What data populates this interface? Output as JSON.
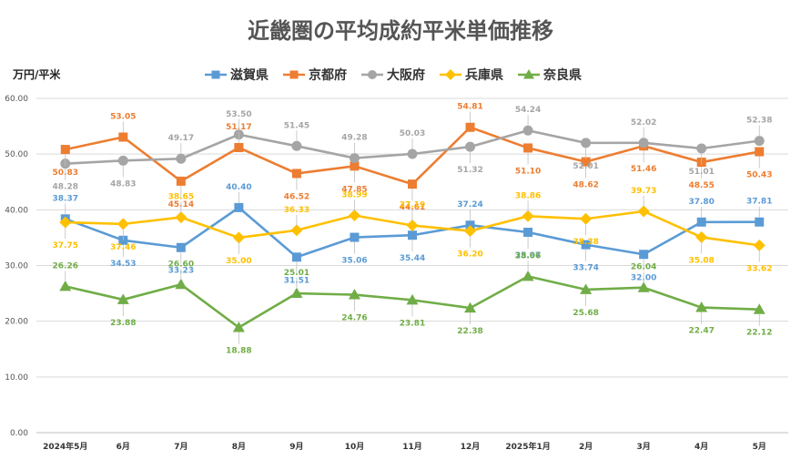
{
  "chart_data": {
    "type": "line",
    "title": "近畿圏の平均成約平米単価推移",
    "ylabel": "万円/平米",
    "xlabel": "",
    "ylim": [
      0,
      60
    ],
    "yticks": [
      "0.00",
      "10.00",
      "20.00",
      "30.00",
      "40.00",
      "50.00",
      "60.00"
    ],
    "grid": true,
    "legend_position": "top-center",
    "categories": [
      "2024年5月",
      "6月",
      "7月",
      "8月",
      "9月",
      "10月",
      "11月",
      "12月",
      "2025年1月",
      "2月",
      "3月",
      "4月",
      "5月"
    ],
    "series": [
      {
        "name": "滋賀県",
        "color": "#5b9bd5",
        "marker": "square",
        "values": [
          38.37,
          34.53,
          33.23,
          40.4,
          31.51,
          35.06,
          35.44,
          37.24,
          35.97,
          33.74,
          32.0,
          37.8,
          37.81
        ],
        "labels": [
          "38.37",
          "34.53",
          "33.23",
          "40.40",
          "31.51",
          "35.06",
          "35.44",
          "37.24",
          "35.97",
          "33.74",
          "32.00",
          "37.80",
          "37.81"
        ]
      },
      {
        "name": "京都府",
        "color": "#ed7d31",
        "marker": "square",
        "values": [
          50.83,
          53.05,
          45.14,
          51.17,
          46.52,
          47.85,
          44.61,
          54.81,
          51.1,
          48.62,
          51.46,
          48.55,
          50.43
        ],
        "labels": [
          "50.83",
          "53.05",
          "45.14",
          "51.17",
          "46.52",
          "47.85",
          "44.61",
          "54.81",
          "51.10",
          "48.62",
          "51.46",
          "48.55",
          "50.43"
        ]
      },
      {
        "name": "大阪府",
        "color": "#a5a5a5",
        "marker": "circle",
        "values": [
          48.28,
          48.83,
          49.17,
          53.5,
          51.45,
          49.28,
          50.03,
          51.32,
          54.24,
          52.01,
          52.02,
          51.01,
          52.38
        ],
        "labels": [
          "48.28",
          "48.83",
          "49.17",
          "53.50",
          "51.45",
          "49.28",
          "50.03",
          "51.32",
          "54.24",
          "52.01",
          "52.02",
          "51.01",
          "52.38"
        ]
      },
      {
        "name": "兵庫県",
        "color": "#ffc000",
        "marker": "diamond",
        "values": [
          37.75,
          37.46,
          38.65,
          35.0,
          36.33,
          38.99,
          37.19,
          36.2,
          38.86,
          38.38,
          39.73,
          35.08,
          33.62
        ],
        "labels": [
          "37.75",
          "37.46",
          "38.65",
          "35.00",
          "36.33",
          "38.99",
          "37.19",
          "36.20",
          "38.86",
          "38.38",
          "39.73",
          "35.08",
          "33.62"
        ]
      },
      {
        "name": "奈良県",
        "color": "#70ad47",
        "marker": "triangle",
        "values": [
          26.26,
          23.88,
          26.6,
          18.88,
          25.01,
          24.76,
          23.81,
          22.38,
          28.06,
          25.68,
          26.04,
          22.47,
          22.12
        ],
        "labels": [
          "26.26",
          "23.88",
          "26.60",
          "18.88",
          "25.01",
          "24.76",
          "23.81",
          "22.38",
          "28.06",
          "25.68",
          "26.04",
          "22.47",
          "22.12"
        ]
      }
    ]
  }
}
